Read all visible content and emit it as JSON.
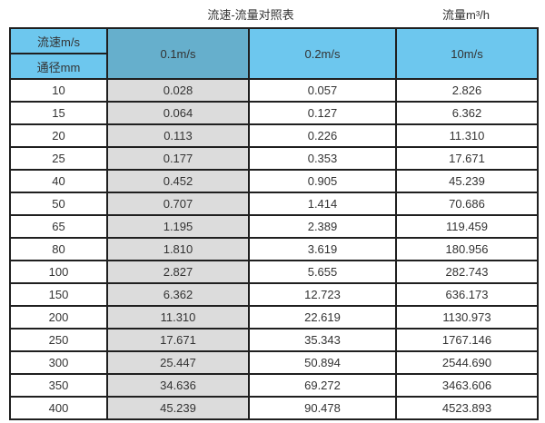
{
  "page": {
    "title": "流速-流量对照表",
    "unit_label": "流量m³/h"
  },
  "colors": {
    "header_blue": "#6dc7ee",
    "header_dark_blue": "#66afcc",
    "shaded_column": "#dcdcdc",
    "border": "#1f1f1f",
    "text": "#333333"
  },
  "table": {
    "corner_top": "流速m/s",
    "corner_bottom": "通径mm",
    "columns": [
      "0.1m/s",
      "0.2m/s",
      "10m/s"
    ],
    "rows": [
      {
        "dn": "10",
        "values": [
          "0.028",
          "0.057",
          "2.826"
        ]
      },
      {
        "dn": "15",
        "values": [
          "0.064",
          "0.127",
          "6.362"
        ]
      },
      {
        "dn": "20",
        "values": [
          "0.113",
          "0.226",
          "11.310"
        ]
      },
      {
        "dn": "25",
        "values": [
          "0.177",
          "0.353",
          "17.671"
        ]
      },
      {
        "dn": "40",
        "values": [
          "0.452",
          "0.905",
          "45.239"
        ]
      },
      {
        "dn": "50",
        "values": [
          "0.707",
          "1.414",
          "70.686"
        ]
      },
      {
        "dn": "65",
        "values": [
          "1.195",
          "2.389",
          "119.459"
        ]
      },
      {
        "dn": "80",
        "values": [
          "1.810",
          "3.619",
          "180.956"
        ]
      },
      {
        "dn": "100",
        "values": [
          "2.827",
          "5.655",
          "282.743"
        ]
      },
      {
        "dn": "150",
        "values": [
          "6.362",
          "12.723",
          "636.173"
        ]
      },
      {
        "dn": "200",
        "values": [
          "11.310",
          "22.619",
          "1130.973"
        ]
      },
      {
        "dn": "250",
        "values": [
          "17.671",
          "35.343",
          "1767.146"
        ]
      },
      {
        "dn": "300",
        "values": [
          "25.447",
          "50.894",
          "2544.690"
        ]
      },
      {
        "dn": "350",
        "values": [
          "34.636",
          "69.272",
          "3463.606"
        ]
      },
      {
        "dn": "400",
        "values": [
          "45.239",
          "90.478",
          "4523.893"
        ]
      }
    ]
  },
  "chart_data": {
    "type": "table",
    "title": "流速-流量对照表",
    "unit": "流量m³/h",
    "row_axis_label": "通径mm",
    "col_axis_label": "流速m/s",
    "categories": [
      10,
      15,
      20,
      25,
      40,
      50,
      65,
      80,
      100,
      150,
      200,
      250,
      300,
      350,
      400
    ],
    "series": [
      {
        "name": "0.1m/s",
        "values": [
          0.028,
          0.064,
          0.113,
          0.177,
          0.452,
          0.707,
          1.195,
          1.81,
          2.827,
          6.362,
          11.31,
          17.671,
          25.447,
          34.636,
          45.239
        ]
      },
      {
        "name": "0.2m/s",
        "values": [
          0.057,
          0.127,
          0.226,
          0.353,
          0.905,
          1.414,
          2.389,
          3.619,
          5.655,
          12.723,
          22.619,
          35.343,
          50.894,
          69.272,
          90.478
        ]
      },
      {
        "name": "10m/s",
        "values": [
          2.826,
          6.362,
          11.31,
          17.671,
          45.239,
          70.686,
          119.459,
          180.956,
          282.743,
          636.173,
          1130.973,
          1767.146,
          2544.69,
          3463.606,
          4523.893
        ]
      }
    ]
  }
}
